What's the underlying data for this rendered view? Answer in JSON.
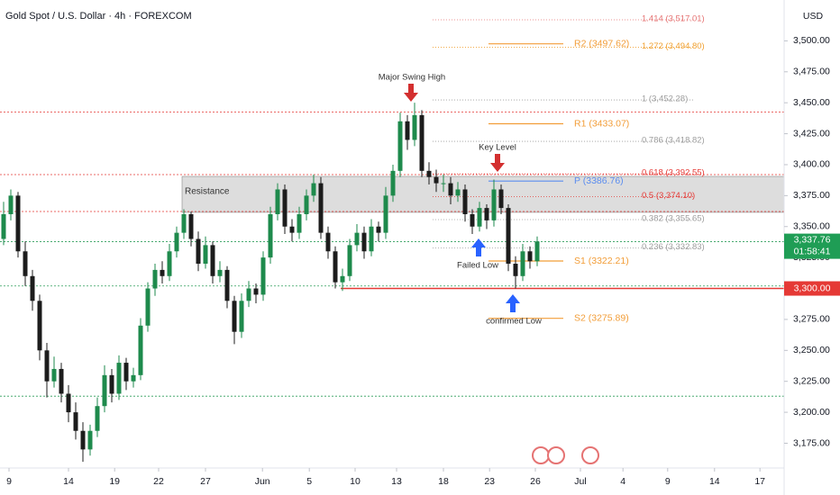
{
  "chart_data": {
    "type": "candlestick",
    "title": "Gold Spot / U.S. Dollar · 4h · FOREXCOM",
    "y_axis_label": "USD",
    "up_color": "#1e8a4c",
    "down_color": "#1c1c1c",
    "ylim": [
      3155,
      3533
    ],
    "xlim": [
      -0.5,
      108.25
    ],
    "yticks": [
      {
        "value": 3175,
        "label": "3,175.00"
      },
      {
        "value": 3200,
        "label": "3,200.00"
      },
      {
        "value": 3225,
        "label": "3,225.00"
      },
      {
        "value": 3250,
        "label": "3,250.00"
      },
      {
        "value": 3275,
        "label": "3,275.00"
      },
      {
        "value": 3300,
        "label": "3,300.00"
      },
      {
        "value": 3325,
        "label": "3,325.00"
      },
      {
        "value": 3350,
        "label": "3,350.00"
      },
      {
        "value": 3375,
        "label": "3,375.00"
      },
      {
        "value": 3400,
        "label": "3,400.00"
      },
      {
        "value": 3425,
        "label": "3,425.00"
      },
      {
        "value": 3450,
        "label": "3,450.00"
      },
      {
        "value": 3475,
        "label": "3,475.00"
      },
      {
        "value": 3500,
        "label": "3,500.00"
      }
    ],
    "xticks": [
      {
        "value": 0.75,
        "label": "9"
      },
      {
        "value": 9,
        "label": "14"
      },
      {
        "value": 15.4,
        "label": "19"
      },
      {
        "value": 21.5,
        "label": "22"
      },
      {
        "value": 28,
        "label": "27"
      },
      {
        "value": 35.9,
        "label": "Jun"
      },
      {
        "value": 42.4,
        "label": "5"
      },
      {
        "value": 48.75,
        "label": "10"
      },
      {
        "value": 54.5,
        "label": "13"
      },
      {
        "value": 61,
        "label": "18"
      },
      {
        "value": 67.4,
        "label": "23"
      },
      {
        "value": 73.75,
        "label": "26"
      },
      {
        "value": 80,
        "label": "Jul"
      },
      {
        "value": 85.9,
        "label": "4"
      },
      {
        "value": 92.1,
        "label": "9"
      },
      {
        "value": 98.6,
        "label": "14"
      },
      {
        "value": 104.9,
        "label": "17"
      }
    ],
    "candles": [
      [
        3340,
        3370,
        3335,
        3360
      ],
      [
        3360,
        3380,
        3355,
        3375
      ],
      [
        3375,
        3378,
        3325,
        3330
      ],
      [
        3330,
        3338,
        3302,
        3310
      ],
      [
        3310,
        3315,
        3282,
        3290
      ],
      [
        3290,
        3295,
        3242,
        3250
      ],
      [
        3250,
        3256,
        3212,
        3225
      ],
      [
        3225,
        3245,
        3220,
        3235
      ],
      [
        3235,
        3240,
        3208,
        3215
      ],
      [
        3215,
        3222,
        3192,
        3200
      ],
      [
        3200,
        3208,
        3178,
        3185
      ],
      [
        3185,
        3192,
        3160,
        3170
      ],
      [
        3170,
        3190,
        3165,
        3185
      ],
      [
        3185,
        3212,
        3180,
        3205
      ],
      [
        3205,
        3238,
        3200,
        3230
      ],
      [
        3230,
        3235,
        3208,
        3215
      ],
      [
        3215,
        3246,
        3210,
        3240
      ],
      [
        3240,
        3244,
        3218,
        3225
      ],
      [
        3225,
        3236,
        3220,
        3230
      ],
      [
        3230,
        3276,
        3226,
        3270
      ],
      [
        3270,
        3305,
        3265,
        3300
      ],
      [
        3300,
        3320,
        3294,
        3315
      ],
      [
        3315,
        3322,
        3304,
        3310
      ],
      [
        3310,
        3336,
        3306,
        3330
      ],
      [
        3330,
        3350,
        3325,
        3345
      ],
      [
        3345,
        3364,
        3340,
        3360
      ],
      [
        3360,
        3362,
        3334,
        3340
      ],
      [
        3340,
        3346,
        3314,
        3320
      ],
      [
        3320,
        3342,
        3316,
        3335
      ],
      [
        3335,
        3338,
        3304,
        3310
      ],
      [
        3310,
        3322,
        3305,
        3315
      ],
      [
        3315,
        3318,
        3284,
        3290
      ],
      [
        3290,
        3294,
        3255,
        3265
      ],
      [
        3265,
        3296,
        3260,
        3290
      ],
      [
        3290,
        3306,
        3285,
        3300
      ],
      [
        3300,
        3304,
        3288,
        3295
      ],
      [
        3295,
        3330,
        3290,
        3325
      ],
      [
        3325,
        3366,
        3320,
        3360
      ],
      [
        3360,
        3385,
        3355,
        3380
      ],
      [
        3380,
        3384,
        3344,
        3350
      ],
      [
        3350,
        3356,
        3338,
        3345
      ],
      [
        3345,
        3366,
        3340,
        3360
      ],
      [
        3360,
        3380,
        3355,
        3375
      ],
      [
        3375,
        3392,
        3370,
        3385
      ],
      [
        3385,
        3390,
        3340,
        3345
      ],
      [
        3345,
        3350,
        3324,
        3330
      ],
      [
        3330,
        3334,
        3300,
        3305
      ],
      [
        3305,
        3316,
        3298,
        3310
      ],
      [
        3310,
        3340,
        3306,
        3335
      ],
      [
        3335,
        3352,
        3330,
        3345
      ],
      [
        3345,
        3350,
        3324,
        3330
      ],
      [
        3330,
        3356,
        3326,
        3350
      ],
      [
        3350,
        3354,
        3338,
        3345
      ],
      [
        3345,
        3382,
        3340,
        3375
      ],
      [
        3375,
        3400,
        3370,
        3395
      ],
      [
        3395,
        3442,
        3390,
        3435
      ],
      [
        3435,
        3440,
        3412,
        3420
      ],
      [
        3420,
        3450,
        3415,
        3440
      ],
      [
        3440,
        3444,
        3390,
        3395
      ],
      [
        3395,
        3402,
        3384,
        3390
      ],
      [
        3390,
        3396,
        3378,
        3385
      ],
      [
        3385,
        3392,
        3378,
        3385
      ],
      [
        3385,
        3390,
        3368,
        3375
      ],
      [
        3375,
        3386,
        3370,
        3380
      ],
      [
        3380,
        3384,
        3354,
        3360
      ],
      [
        3360,
        3364,
        3344,
        3350
      ],
      [
        3350,
        3370,
        3346,
        3365
      ],
      [
        3365,
        3368,
        3348,
        3355
      ],
      [
        3355,
        3388,
        3350,
        3380
      ],
      [
        3380,
        3384,
        3360,
        3365
      ],
      [
        3365,
        3368,
        3314,
        3320
      ],
      [
        3320,
        3326,
        3300,
        3310
      ],
      [
        3310,
        3336,
        3306,
        3330
      ],
      [
        3330,
        3334,
        3316,
        3322
      ],
      [
        3322,
        3342,
        3318,
        3338
      ]
    ],
    "hlines": [
      {
        "value": 3442.5,
        "color": "#e53935"
      },
      {
        "value": 3392,
        "color": "#e53935"
      },
      {
        "value": 3362.2,
        "color": "#e53935"
      },
      {
        "value": 3337.76,
        "color": "#2e9e5b"
      },
      {
        "value": 3302,
        "color": "#2e9e5b"
      },
      {
        "value": 3213,
        "color": "#2e9e5b"
      }
    ],
    "zone": {
      "label": "Resistance",
      "top": 3390.5,
      "bottom": 3361.5
    },
    "support": {
      "value": 3300,
      "label": "3,300.00",
      "color": "#e53935"
    },
    "last_price": {
      "value": 3337.76,
      "label": "3,337.76",
      "countdown": "01:58:41",
      "color": "#1f9d55"
    },
    "levels": [
      {
        "kind": "fib",
        "label": "1.414 (3,517.01)",
        "value": 3517.01,
        "color": "#e57373"
      },
      {
        "kind": "fib",
        "label": "1.272 (3,494.80)",
        "value": 3494.8,
        "color": "#f0a030"
      },
      {
        "kind": "fib",
        "label": "1 (3,452.28)",
        "value": 3452.28,
        "color": "#9e9e9e"
      },
      {
        "kind": "fib",
        "label": "0.786 (3,418.82)",
        "value": 3418.82,
        "color": "#9e9e9e"
      },
      {
        "kind": "fib",
        "label": "0.618 (3,392.55)",
        "value": 3392.55,
        "color": "#e53935"
      },
      {
        "kind": "fib",
        "label": "0.5 (3,374.10)",
        "value": 3374.1,
        "color": "#e53935"
      },
      {
        "kind": "fib",
        "label": "0.382 (3,355.65)",
        "value": 3355.65,
        "color": "#9e9e9e"
      },
      {
        "kind": "fib",
        "label": "0.236 (3,332.83)",
        "value": 3332.83,
        "color": "#9e9e9e"
      },
      {
        "kind": "pivot",
        "label": "R2 (3497.62)",
        "value": 3497.62,
        "color": "#f29d38"
      },
      {
        "kind": "pivot",
        "label": "R1 (3433.07)",
        "value": 3433.07,
        "color": "#f29d38"
      },
      {
        "kind": "pivot",
        "label": "P (3386.76)",
        "value": 3386.76,
        "color": "#5b8def"
      },
      {
        "kind": "pivot",
        "label": "S1 (3322.21)",
        "value": 3322.21,
        "color": "#f29d38"
      },
      {
        "kind": "pivot",
        "label": "S2 (3275.89)",
        "value": 3275.89,
        "color": "#f29d38"
      }
    ],
    "annotations": [
      {
        "text": "Major Swing High",
        "color": "#d32f2f"
      },
      {
        "text": "Key Level",
        "color": "#d32f2f"
      },
      {
        "text": "Failed Low",
        "color": "#2962ff"
      },
      {
        "text": "confirmed Low",
        "color": "#2962ff"
      }
    ]
  }
}
